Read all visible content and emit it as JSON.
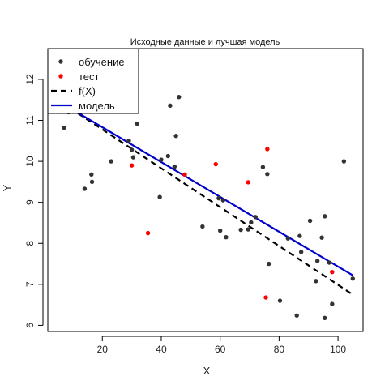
{
  "chart_data": {
    "type": "scatter",
    "title": "Исходные данные и лучшая модель",
    "xlabel": "X",
    "ylabel": "Y",
    "xlim": [
      1.5,
      108.5
    ],
    "ylim": [
      5.85,
      12.75
    ],
    "xticks": [
      20,
      40,
      60,
      80,
      100
    ],
    "yticks": [
      6,
      7,
      8,
      9,
      10,
      11,
      12
    ],
    "grid": false,
    "legend_position": "top-left",
    "legend": [
      {
        "key": "train",
        "label": "обучение",
        "kind": "point",
        "color": "#333333"
      },
      {
        "key": "test",
        "label": "тест",
        "kind": "point",
        "color": "#ff0000"
      },
      {
        "key": "fx",
        "label": "f(X)",
        "kind": "dashed-line",
        "color": "#000000"
      },
      {
        "key": "model",
        "label": "модель",
        "kind": "line",
        "color": "#0000cc"
      }
    ],
    "series": [
      {
        "name": "обучение",
        "kind": "points",
        "color": "#333333",
        "points": [
          [
            7,
            10.82
          ],
          [
            8.5,
            11.2
          ],
          [
            14,
            9.33
          ],
          [
            16.3,
            9.68
          ],
          [
            16.5,
            9.5
          ],
          [
            23,
            10
          ],
          [
            29,
            10.5
          ],
          [
            30,
            10.28
          ],
          [
            30.5,
            10.1
          ],
          [
            31.8,
            10.92
          ],
          [
            39.5,
            9.13
          ],
          [
            40,
            10.04
          ],
          [
            42.3,
            10.13
          ],
          [
            43,
            11.36
          ],
          [
            44.5,
            9.87
          ],
          [
            45,
            10.62
          ],
          [
            46,
            11.57
          ],
          [
            54,
            8.41
          ],
          [
            59.5,
            9.1
          ],
          [
            60,
            8.31
          ],
          [
            61,
            9.05
          ],
          [
            62,
            8.15
          ],
          [
            67,
            8.33
          ],
          [
            69.5,
            8.34
          ],
          [
            70.5,
            8.51
          ],
          [
            72,
            8.64
          ],
          [
            74.5,
            9.86
          ],
          [
            76,
            9.69
          ],
          [
            76.5,
            7.5
          ],
          [
            80.3,
            6.6
          ],
          [
            83,
            8.12
          ],
          [
            86,
            6.24
          ],
          [
            87,
            8.18
          ],
          [
            87.5,
            7.79
          ],
          [
            90.5,
            8.55
          ],
          [
            92.5,
            7.08
          ],
          [
            93,
            7.57
          ],
          [
            94.5,
            8.14
          ],
          [
            95.5,
            8.66
          ],
          [
            95.5,
            6.18
          ],
          [
            97,
            7.53
          ],
          [
            98,
            6.52
          ],
          [
            102,
            10
          ],
          [
            105,
            7.14
          ]
        ]
      },
      {
        "name": "тест",
        "kind": "points",
        "color": "#ff0000",
        "points": [
          [
            30,
            9.9
          ],
          [
            35.5,
            8.25
          ],
          [
            48,
            9.68
          ],
          [
            58.5,
            9.93
          ],
          [
            69.5,
            9.49
          ],
          [
            75.5,
            6.68
          ],
          [
            76,
            10.3
          ],
          [
            98,
            7.3
          ]
        ]
      },
      {
        "name": "f(X)",
        "kind": "line",
        "dashed": true,
        "color": "#000000",
        "points": [
          [
            9,
            11.3
          ],
          [
            105,
            6.75
          ]
        ]
      },
      {
        "name": "модель",
        "kind": "line",
        "dashed": false,
        "color": "#0000cc",
        "points": [
          [
            9,
            11.3
          ],
          [
            105,
            7.22
          ]
        ]
      }
    ]
  }
}
